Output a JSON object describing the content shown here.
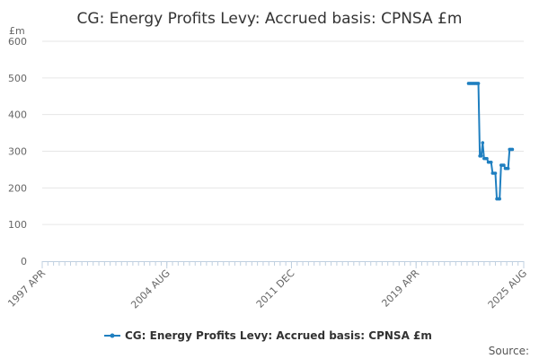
{
  "chart_data": {
    "type": "line",
    "title": "CG: Energy Profits Levy: Accrued basis: CPNSA £m",
    "y_unit": "£m",
    "ylim": [
      0,
      600
    ],
    "y_ticks": [
      "0",
      "100",
      "200",
      "300",
      "400",
      "500",
      "600"
    ],
    "x_range": [
      "1997-04",
      "2025-08"
    ],
    "x_ticks": [
      {
        "label": "1997 APR",
        "date": "1997-04"
      },
      {
        "label": "2004 AUG",
        "date": "2004-08"
      },
      {
        "label": "2011 DEC",
        "date": "2011-12"
      },
      {
        "label": "2019 APR",
        "date": "2019-04"
      },
      {
        "label": "2025 AUG",
        "date": "2025-08"
      }
    ],
    "grid": "horizontal",
    "legend_position": "bottom",
    "color": "#1f7fc0",
    "series": [
      {
        "name": "CG: Energy Profits Levy: Accrued basis: CPNSA £m",
        "points": [
          {
            "x": "2022-05",
            "y": 485
          },
          {
            "x": "2022-06",
            "y": 485
          },
          {
            "x": "2022-07",
            "y": 485
          },
          {
            "x": "2022-08",
            "y": 485
          },
          {
            "x": "2022-09",
            "y": 485
          },
          {
            "x": "2022-10",
            "y": 485
          },
          {
            "x": "2022-11",
            "y": 485
          },
          {
            "x": "2022-12",
            "y": 485
          },
          {
            "x": "2023-01",
            "y": 287
          },
          {
            "x": "2023-02",
            "y": 287
          },
          {
            "x": "2023-03",
            "y": 323
          },
          {
            "x": "2023-04",
            "y": 280
          },
          {
            "x": "2023-05",
            "y": 280
          },
          {
            "x": "2023-06",
            "y": 280
          },
          {
            "x": "2023-07",
            "y": 270
          },
          {
            "x": "2023-08",
            "y": 270
          },
          {
            "x": "2023-09",
            "y": 270
          },
          {
            "x": "2023-10",
            "y": 240
          },
          {
            "x": "2023-11",
            "y": 240
          },
          {
            "x": "2023-12",
            "y": 240
          },
          {
            "x": "2024-01",
            "y": 170
          },
          {
            "x": "2024-02",
            "y": 170
          },
          {
            "x": "2024-03",
            "y": 170
          },
          {
            "x": "2024-04",
            "y": 262
          },
          {
            "x": "2024-05",
            "y": 262
          },
          {
            "x": "2024-06",
            "y": 262
          },
          {
            "x": "2024-07",
            "y": 253
          },
          {
            "x": "2024-08",
            "y": 253
          },
          {
            "x": "2024-09",
            "y": 253
          },
          {
            "x": "2024-10",
            "y": 305
          },
          {
            "x": "2024-11",
            "y": 305
          },
          {
            "x": "2024-12",
            "y": 305
          }
        ]
      }
    ]
  },
  "footer": {
    "source_label": "Source:"
  }
}
